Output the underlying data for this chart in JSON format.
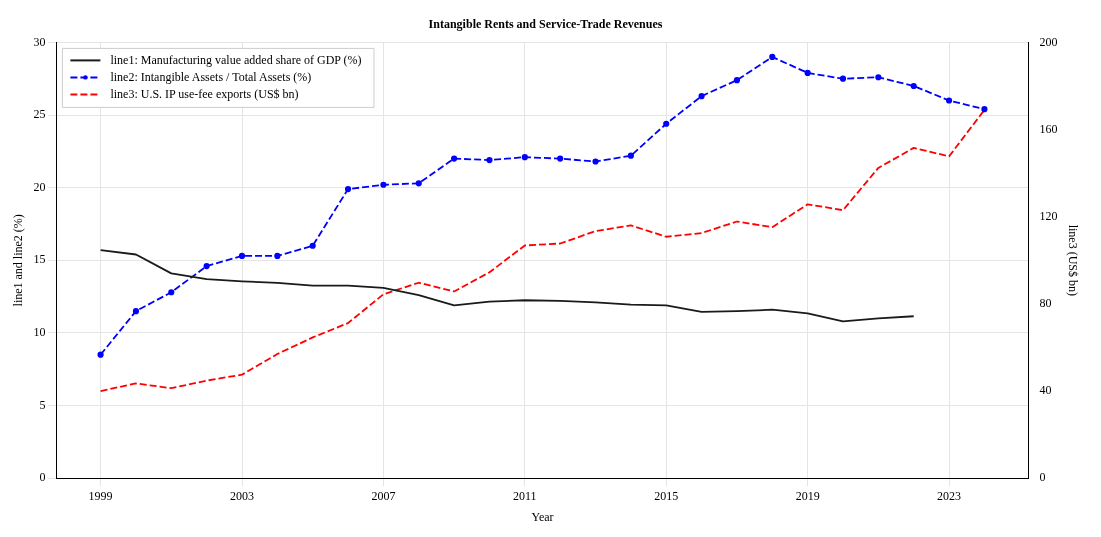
{
  "chart_data": {
    "type": "line",
    "title": "Intangible Rents and Service-Trade Revenues",
    "xlabel": "Year",
    "ylabel": "line1 and line2 (%)",
    "y2label": "line3 (US$ bn)",
    "x": [
      1999,
      2000,
      2001,
      2002,
      2003,
      2004,
      2005,
      2006,
      2007,
      2008,
      2009,
      2010,
      2011,
      2012,
      2013,
      2014,
      2015,
      2016,
      2017,
      2018,
      2019,
      2020,
      2021,
      2022,
      2023,
      2024
    ],
    "xlim": [
      1997.75,
      2025.25
    ],
    "xticks": [
      1999,
      2003,
      2007,
      2011,
      2015,
      2019,
      2023
    ],
    "ylim": [
      0,
      30
    ],
    "yticks": [
      0,
      5,
      10,
      15,
      20,
      25,
      30
    ],
    "y2lim": [
      0,
      200
    ],
    "y2ticks": [
      0,
      40,
      80,
      120,
      160,
      200
    ],
    "grid": true,
    "legend": "top left",
    "series": [
      {
        "name": "line1: Manufacturing value added share of GDP (%)",
        "color": "#1a1a1a",
        "line_style": "solid",
        "marker": "none",
        "values": [
          15.7,
          15.4,
          14.1,
          13.7,
          13.55,
          13.45,
          13.25,
          13.25,
          13.1,
          12.6,
          11.9,
          12.15,
          12.25,
          12.2,
          12.1,
          11.95,
          11.9,
          11.45,
          11.5,
          11.6,
          11.35,
          10.8,
          11.0,
          11.15,
          null,
          null
        ]
      },
      {
        "name": "line2: Intangible Assets / Total Assets (%)",
        "color": "#0000ff",
        "line_style": "dashed",
        "marker": "circle",
        "values": [
          8.5,
          11.5,
          12.8,
          14.6,
          15.3,
          15.3,
          16.0,
          19.9,
          20.2,
          20.3,
          22.0,
          21.9,
          22.1,
          22.0,
          21.8,
          22.2,
          24.4,
          26.3,
          27.4,
          29.0,
          27.9,
          27.5,
          27.6,
          27.0,
          26.0,
          25.4
        ]
      },
      {
        "name": "line3: U.S. IP use-fee exports (US$ bn)",
        "color": "#ff0000",
        "line_style": "dashed",
        "marker": "none",
        "axis": "y2",
        "values": [
          40,
          43.5,
          41.3,
          44.8,
          47.5,
          57,
          64.6,
          71.2,
          84.4,
          89.7,
          85.7,
          94.5,
          106.8,
          107.7,
          113.4,
          116,
          110.8,
          112.5,
          117.8,
          115.2,
          125.7,
          123,
          142.4,
          151.6,
          147.7,
          169
        ]
      }
    ]
  }
}
